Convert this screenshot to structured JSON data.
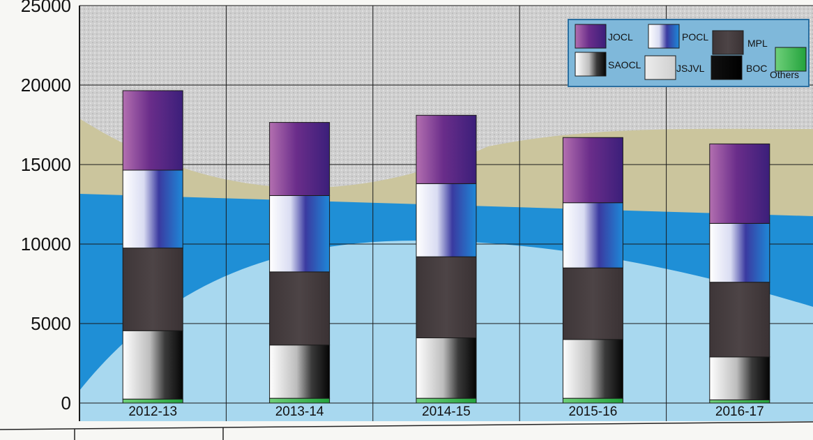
{
  "chart_data": {
    "type": "bar",
    "stacked": true,
    "title": "",
    "xlabel": "",
    "ylabel": "",
    "ylim": [
      0,
      25000
    ],
    "yticks": [
      0,
      5000,
      10000,
      15000,
      20000,
      25000
    ],
    "grid": true,
    "legend_position": "top-right",
    "categories": [
      "2012-13",
      "2013-14",
      "2014-15",
      "2015-16",
      "2016-17"
    ],
    "series": [
      {
        "name": "Others",
        "color": "#33b54a",
        "values": [
          250,
          300,
          300,
          300,
          200
        ]
      },
      {
        "name": "BOC",
        "color": "#111111",
        "values": [
          0,
          0,
          0,
          0,
          0
        ]
      },
      {
        "name": "SAOCL",
        "color": "#9a9a9a",
        "values": [
          4300,
          3350,
          3800,
          3700,
          2700
        ]
      },
      {
        "name": "MPL",
        "color": "#4a4244",
        "values": [
          5200,
          4600,
          5100,
          4500,
          4700
        ]
      },
      {
        "name": "POCL",
        "color": "#2f5bbf",
        "values": [
          4900,
          4800,
          4600,
          4100,
          3700
        ]
      },
      {
        "name": "JOCL",
        "color": "#5a2a80",
        "values": [
          5000,
          4600,
          4300,
          4100,
          5000
        ]
      },
      {
        "name": "JSJVL",
        "color": "#d4d4d4",
        "values": [
          0,
          0,
          0,
          0,
          0
        ]
      }
    ],
    "legend": [
      {
        "name": "JOCL",
        "color": "#5a2a80"
      },
      {
        "name": "POCL",
        "color": "#2f5bbf"
      },
      {
        "name": "MPL",
        "color": "#4a4244"
      },
      {
        "name": "SAOCL",
        "color": "#9a9a9a"
      },
      {
        "name": "JSJVL",
        "color": "#d9d9d9"
      },
      {
        "name": "BOC",
        "color": "#111111"
      },
      {
        "name": "Others",
        "color": "#33b54a"
      }
    ]
  }
}
